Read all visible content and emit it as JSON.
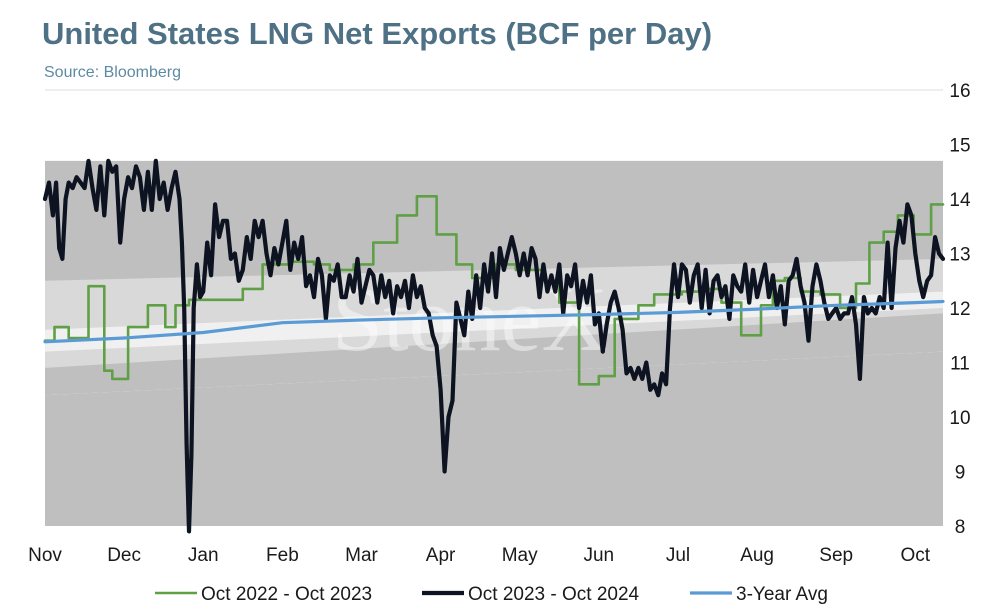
{
  "chart_data": {
    "type": "line",
    "title": "United States LNG Net Exports (BCF per Day)",
    "subtitle": "Source: Bloomberg",
    "watermark": "StoneX",
    "xlabel": "",
    "ylabel": "",
    "ylim": [
      8,
      16
    ],
    "yticks": [
      8,
      9,
      10,
      11,
      12,
      13,
      14,
      15,
      16
    ],
    "xlim": [
      0,
      11.35
    ],
    "xticks": [
      {
        "label": "Nov",
        "pos": 0
      },
      {
        "label": "Dec",
        "pos": 1
      },
      {
        "label": "Jan",
        "pos": 2
      },
      {
        "label": "Feb",
        "pos": 3
      },
      {
        "label": "Mar",
        "pos": 4
      },
      {
        "label": "Apr",
        "pos": 5
      },
      {
        "label": "May",
        "pos": 6
      },
      {
        "label": "Jun",
        "pos": 7
      },
      {
        "label": "Jul",
        "pos": 8
      },
      {
        "label": "Aug",
        "pos": 9
      },
      {
        "label": "Sep",
        "pos": 10
      },
      {
        "label": "Oct",
        "pos": 11
      }
    ],
    "y_axis_position": "right",
    "grid": false,
    "legend_position": "bottom",
    "colors": {
      "series_2023": "#5fa046",
      "series_2024": "#0d1320",
      "avg": "#5b9bd5",
      "band_outer": "#bfbfbf",
      "band_mid": "#d9d9d9",
      "band_inner": "#f0f0f0"
    },
    "bands": [
      {
        "name": "outer",
        "x": [
          0,
          11.35
        ],
        "lower": [
          10.4,
          11.2
        ],
        "upper": [
          14.7,
          14.7
        ]
      },
      {
        "name": "mid",
        "x": [
          0,
          11.35
        ],
        "lower": [
          10.9,
          11.9
        ],
        "upper": [
          12.5,
          12.9
        ]
      },
      {
        "name": "inner",
        "x": [
          0,
          11.35
        ],
        "lower": [
          11.2,
          12.0
        ],
        "upper": [
          11.6,
          12.3
        ]
      }
    ],
    "series": [
      {
        "name": "Oct 2022 - Oct 2023",
        "color": "#5fa046",
        "x": [
          0,
          0.12,
          0.12,
          0.3,
          0.3,
          0.55,
          0.55,
          0.75,
          0.75,
          0.85,
          0.85,
          1.05,
          1.05,
          1.3,
          1.3,
          1.52,
          1.52,
          1.65,
          1.65,
          1.82,
          1.82,
          2.5,
          2.5,
          2.75,
          2.75,
          3.1,
          3.1,
          3.4,
          3.4,
          3.6,
          3.6,
          3.9,
          3.9,
          4.15,
          4.15,
          4.45,
          4.45,
          4.7,
          4.7,
          4.95,
          4.95,
          5.2,
          5.2,
          5.4,
          5.4,
          5.7,
          5.7,
          5.95,
          5.95,
          6.3,
          6.3,
          6.5,
          6.5,
          6.75,
          6.75,
          7.0,
          7.0,
          7.2,
          7.2,
          7.5,
          7.5,
          7.7,
          7.7,
          8.05,
          8.05,
          8.3,
          8.3,
          8.55,
          8.55,
          8.8,
          8.8,
          9.05,
          9.05,
          9.2,
          9.2,
          9.35,
          9.35,
          9.55,
          9.55,
          9.8,
          9.8,
          10.05,
          10.05,
          10.25,
          10.25,
          10.42,
          10.42,
          10.6,
          10.6,
          10.78,
          10.78,
          10.98,
          10.98,
          11.2,
          11.2,
          11.35
        ],
        "values": [
          11.4,
          11.4,
          11.65,
          11.65,
          11.45,
          11.45,
          12.4,
          12.4,
          10.85,
          10.85,
          10.7,
          10.7,
          11.65,
          11.65,
          12.05,
          12.05,
          11.65,
          11.65,
          12.05,
          12.05,
          12.15,
          12.15,
          12.35,
          12.35,
          12.8,
          12.8,
          12.85,
          12.85,
          12.8,
          12.8,
          12.7,
          12.7,
          12.8,
          12.8,
          13.2,
          13.2,
          13.7,
          13.7,
          14.05,
          14.05,
          13.35,
          13.35,
          12.8,
          12.8,
          12.55,
          12.55,
          12.8,
          12.8,
          12.7,
          12.7,
          12.5,
          12.5,
          12.1,
          12.1,
          10.6,
          10.6,
          10.75,
          10.75,
          11.8,
          11.8,
          12.05,
          12.05,
          12.25,
          12.25,
          12.3,
          12.3,
          12.35,
          12.35,
          12.1,
          12.1,
          11.5,
          11.5,
          12.05,
          12.05,
          12.5,
          12.5,
          12.55,
          12.55,
          12.3,
          12.3,
          12.25,
          12.25,
          12.0,
          12.0,
          12.45,
          12.45,
          13.2,
          13.2,
          13.4,
          13.4,
          13.7,
          13.7,
          13.35,
          13.35,
          13.9,
          13.9
        ]
      },
      {
        "name": "Oct 2023 - Oct 2024",
        "color": "#0d1320",
        "x": [
          0,
          0.05,
          0.1,
          0.14,
          0.18,
          0.22,
          0.26,
          0.3,
          0.35,
          0.4,
          0.45,
          0.5,
          0.55,
          0.6,
          0.65,
          0.7,
          0.75,
          0.8,
          0.85,
          0.9,
          0.95,
          1.0,
          1.05,
          1.1,
          1.15,
          1.2,
          1.25,
          1.3,
          1.35,
          1.4,
          1.45,
          1.5,
          1.55,
          1.6,
          1.65,
          1.7,
          1.73,
          1.76,
          1.79,
          1.82,
          1.85,
          1.88,
          1.92,
          1.96,
          2.0,
          2.05,
          2.1,
          2.15,
          2.2,
          2.25,
          2.3,
          2.35,
          2.4,
          2.45,
          2.5,
          2.55,
          2.6,
          2.65,
          2.7,
          2.75,
          2.8,
          2.85,
          2.9,
          2.95,
          3.0,
          3.05,
          3.1,
          3.15,
          3.2,
          3.25,
          3.3,
          3.35,
          3.4,
          3.45,
          3.5,
          3.55,
          3.6,
          3.65,
          3.7,
          3.75,
          3.8,
          3.85,
          3.9,
          3.95,
          4.0,
          4.05,
          4.1,
          4.15,
          4.2,
          4.25,
          4.3,
          4.35,
          4.4,
          4.45,
          4.5,
          4.55,
          4.6,
          4.65,
          4.7,
          4.75,
          4.8,
          4.85,
          4.9,
          4.95,
          5.0,
          5.05,
          5.1,
          5.15,
          5.2,
          5.25,
          5.3,
          5.35,
          5.4,
          5.45,
          5.5,
          5.55,
          5.6,
          5.65,
          5.7,
          5.75,
          5.8,
          5.85,
          5.9,
          5.95,
          6.0,
          6.05,
          6.1,
          6.15,
          6.2,
          6.25,
          6.3,
          6.35,
          6.4,
          6.45,
          6.5,
          6.55,
          6.6,
          6.65,
          6.7,
          6.75,
          6.8,
          6.85,
          6.9,
          6.95,
          7.0,
          7.05,
          7.1,
          7.15,
          7.2,
          7.25,
          7.3,
          7.35,
          7.4,
          7.45,
          7.5,
          7.55,
          7.6,
          7.65,
          7.7,
          7.75,
          7.8,
          7.85,
          7.9,
          7.95,
          8.0,
          8.05,
          8.1,
          8.15,
          8.2,
          8.25,
          8.3,
          8.35,
          8.4,
          8.45,
          8.5,
          8.55,
          8.6,
          8.65,
          8.7,
          8.75,
          8.8,
          8.85,
          8.9,
          8.95,
          9.0,
          9.05,
          9.1,
          9.15,
          9.2,
          9.25,
          9.3,
          9.35,
          9.4,
          9.45,
          9.5,
          9.55,
          9.6,
          9.65,
          9.7,
          9.75,
          9.8,
          9.85,
          9.9,
          9.95,
          10.0,
          10.05,
          10.1,
          10.15,
          10.2,
          10.25,
          10.3,
          10.35,
          10.4,
          10.45,
          10.5,
          10.55,
          10.6,
          10.65,
          10.7,
          10.75,
          10.8,
          10.85,
          10.9,
          10.95,
          11.0,
          11.05,
          11.1,
          11.15,
          11.2,
          11.25,
          11.3,
          11.35
        ],
        "values": [
          14.0,
          14.3,
          13.7,
          14.3,
          13.1,
          12.9,
          14.0,
          14.3,
          14.2,
          14.4,
          14.3,
          14.2,
          14.7,
          14.2,
          13.8,
          14.6,
          13.7,
          14.7,
          14.5,
          14.6,
          13.2,
          14.0,
          14.4,
          14.2,
          14.6,
          14.4,
          13.8,
          14.5,
          13.8,
          14.7,
          14.0,
          14.3,
          13.8,
          14.2,
          14.5,
          14.0,
          13.2,
          12.0,
          9.5,
          7.9,
          9.3,
          12.0,
          12.8,
          12.2,
          12.3,
          13.2,
          12.6,
          13.9,
          13.3,
          13.6,
          13.6,
          12.9,
          13.0,
          12.5,
          12.7,
          13.3,
          12.9,
          13.6,
          13.3,
          13.6,
          13.0,
          12.6,
          13.1,
          12.8,
          13.2,
          13.6,
          12.7,
          13.2,
          12.9,
          13.3,
          12.4,
          12.6,
          12.2,
          12.9,
          12.6,
          11.8,
          12.6,
          12.5,
          12.8,
          12.2,
          12.2,
          12.6,
          12.3,
          12.9,
          12.1,
          12.4,
          12.7,
          12.6,
          12.1,
          12.6,
          12.2,
          12.5,
          11.9,
          12.4,
          12.2,
          12.5,
          12.0,
          12.6,
          12.2,
          12.4,
          12.0,
          11.9,
          11.5,
          11.3,
          10.5,
          9.0,
          10.0,
          10.3,
          12.1,
          11.8,
          11.5,
          12.3,
          11.8,
          12.6,
          12.0,
          12.8,
          12.3,
          13.0,
          12.2,
          13.1,
          12.7,
          13.0,
          13.3,
          13.0,
          12.6,
          13.0,
          12.6,
          13.1,
          12.9,
          12.2,
          12.8,
          12.3,
          12.6,
          12.3,
          12.8,
          11.9,
          12.6,
          12.4,
          12.8,
          12.0,
          12.5,
          12.1,
          12.6,
          11.7,
          11.9,
          11.2,
          11.7,
          12.1,
          12.3,
          12.0,
          11.6,
          10.8,
          10.9,
          10.7,
          10.9,
          10.7,
          11.0,
          10.5,
          10.6,
          10.4,
          10.8,
          10.6,
          12.0,
          12.8,
          12.2,
          12.8,
          12.7,
          12.1,
          12.6,
          12.8,
          12.0,
          12.7,
          11.9,
          12.5,
          12.6,
          12.2,
          12.4,
          11.8,
          12.6,
          12.4,
          12.3,
          12.8,
          12.1,
          12.7,
          12.2,
          12.5,
          12.8,
          12.2,
          12.6,
          12.0,
          12.4,
          11.7,
          12.5,
          12.6,
          12.9,
          12.4,
          12.1,
          11.4,
          12.4,
          12.8,
          12.5,
          12.1,
          11.8,
          11.9,
          12.0,
          11.8,
          11.9,
          11.9,
          12.2,
          11.7,
          10.7,
          12.2,
          11.9,
          12.0,
          11.9,
          12.2,
          12.0,
          13.2,
          12.0,
          13.1,
          13.6,
          13.2,
          13.9,
          13.7,
          13.0,
          12.5,
          12.2,
          12.5,
          12.6,
          13.3,
          13.0,
          12.9
        ]
      },
      {
        "name": "3-Year Avg",
        "color": "#5b9bd5",
        "x": [
          0,
          1,
          2,
          3,
          4,
          5,
          6,
          7,
          8,
          9,
          10,
          11,
          11.35
        ],
        "values": [
          11.38,
          11.45,
          11.55,
          11.73,
          11.78,
          11.82,
          11.85,
          11.88,
          11.92,
          11.98,
          12.05,
          12.1,
          12.12
        ]
      }
    ]
  }
}
